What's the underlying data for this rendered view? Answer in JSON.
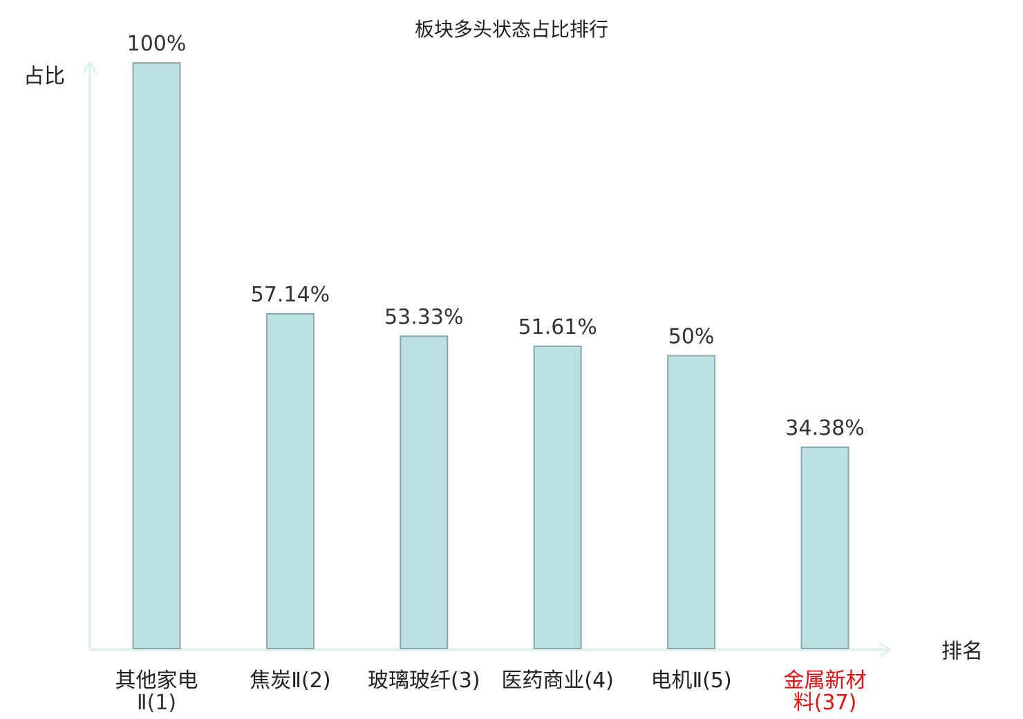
{
  "chart_data": {
    "type": "bar",
    "title": "板块多头状态占比排行",
    "ylabel": "占比",
    "xlabel": "排名",
    "ylim": [
      0,
      100
    ],
    "grid": false,
    "legend": "none",
    "categories": [
      {
        "lines": [
          {
            "text": "其他家电",
            "tone": "main"
          },
          {
            "text": "Ⅱ(1)",
            "tone": "sub"
          }
        ],
        "highlight": false
      },
      {
        "lines": [
          {
            "text": "焦炭Ⅱ(2)",
            "tone": "main"
          }
        ],
        "highlight": false
      },
      {
        "lines": [
          {
            "text": "玻璃玻纤(3)",
            "tone": "main"
          }
        ],
        "highlight": false
      },
      {
        "lines": [
          {
            "text": "医药商业(4)",
            "tone": "main"
          }
        ],
        "highlight": false
      },
      {
        "lines": [
          {
            "text": "电机Ⅱ(5)",
            "tone": "main"
          }
        ],
        "highlight": false
      },
      {
        "lines": [
          {
            "text": "金属新材",
            "tone": "main"
          },
          {
            "text": "料(37)",
            "tone": "main"
          }
        ],
        "highlight": true
      }
    ],
    "values": [
      100,
      57.14,
      53.33,
      51.61,
      50,
      34.38
    ],
    "value_labels": [
      "100%",
      "57.14%",
      "53.33%",
      "51.61%",
      "50%",
      "34.38%"
    ],
    "colors": {
      "bar_fill": "#bde0e3",
      "bar_stroke": "#8aa7ab",
      "axis": "#dff2ef",
      "text": "#222222",
      "text_sub": "#333333",
      "highlight": "#e01010"
    }
  }
}
